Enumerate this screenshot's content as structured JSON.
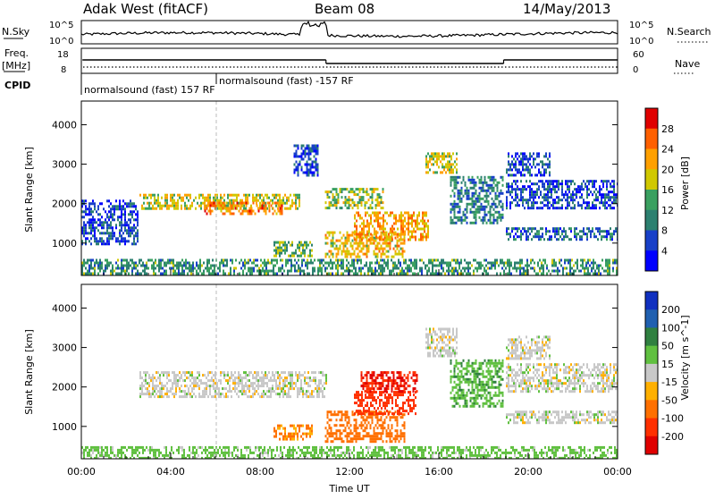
{
  "header": {
    "station": "Adak West (fitACF)",
    "beam": "Beam 08",
    "date": "14/May/2013"
  },
  "noise_panel": {
    "left_label": "N.Sky",
    "right_label": "N.Search",
    "left_ticks": [
      "10^5",
      "10^0"
    ],
    "right_ticks": [
      "10^5",
      "10^0"
    ]
  },
  "freq_panel": {
    "left_label_1": "Freq.",
    "left_label_2": "[MHz]",
    "right_label": "Nave",
    "left_ticks": [
      "18",
      "8"
    ],
    "right_ticks": [
      "60",
      "0"
    ],
    "freq_level": 13,
    "freq_drops": [
      {
        "start_hour": 0.05,
        "end_hour": 10.95,
        "level": 13.5
      },
      {
        "start_hour": 10.95,
        "end_hour": 18.9,
        "level": 11.5
      },
      {
        "start_hour": 18.9,
        "end_hour": 24.0,
        "level": 13.5
      }
    ]
  },
  "cpid_panel": {
    "label": "CPID",
    "segments": [
      {
        "text": "normalsound (fast) 157 RF",
        "start_hour": 0.05
      },
      {
        "text": "normalsound (fast) -157 RF",
        "start_hour": 6.1
      }
    ]
  },
  "chart_data": [
    {
      "type": "heatmap",
      "name": "power",
      "ylabel": "Slant Range [km]",
      "xlabel": "Time UT",
      "x_ticks": [
        "00:00",
        "04:00",
        "08:00",
        "12:00",
        "16:00",
        "20:00",
        "00:00"
      ],
      "xlim_hours": [
        0,
        24
      ],
      "y_ticks": [
        1000,
        2000,
        3000,
        4000
      ],
      "ylim": [
        180,
        4600
      ],
      "colorbar": {
        "label": "Power [dB]",
        "ticks": [
          28,
          24,
          20,
          16,
          12,
          8,
          4
        ],
        "colors": [
          "#e00000",
          "#ff6000",
          "#ffa000",
          "#d0c800",
          "#3aa060",
          "#2c8070",
          "#1840c8",
          "#0000ff"
        ]
      },
      "echo_regions": [
        {
          "x0": 2.6,
          "x1": 9.8,
          "y0": 1850,
          "y1": 2250,
          "value": 18
        },
        {
          "x0": 5.5,
          "x1": 9.0,
          "y0": 1750,
          "y1": 2050,
          "value": 24
        },
        {
          "x0": 8.6,
          "x1": 10.3,
          "y0": 650,
          "y1": 1050,
          "value": 14
        },
        {
          "x0": 10.9,
          "x1": 14.5,
          "y0": 650,
          "y1": 1300,
          "value": 20
        },
        {
          "x0": 12.2,
          "x1": 15.5,
          "y0": 1100,
          "y1": 1800,
          "value": 22
        },
        {
          "x0": 10.9,
          "x1": 13.5,
          "y0": 1900,
          "y1": 2400,
          "value": 16
        },
        {
          "x0": 15.4,
          "x1": 16.8,
          "y0": 2800,
          "y1": 3300,
          "value": 18
        },
        {
          "x0": 16.5,
          "x1": 18.9,
          "y0": 1500,
          "y1": 2700,
          "value": 10
        },
        {
          "x0": 19.0,
          "x1": 24.0,
          "y0": 1100,
          "y1": 1400,
          "value": 8
        },
        {
          "x0": 19.0,
          "x1": 24.0,
          "y0": 1900,
          "y1": 2600,
          "value": 6
        },
        {
          "x0": 19.0,
          "x1": 21.0,
          "y0": 2700,
          "y1": 3300,
          "value": 6
        },
        {
          "x0": 0.0,
          "x1": 24.0,
          "y0": 180,
          "y1": 600,
          "value": 12
        },
        {
          "x0": 9.5,
          "x1": 10.6,
          "y0": 2700,
          "y1": 3500,
          "value": 6
        },
        {
          "x0": 0.0,
          "x1": 2.5,
          "y0": 1000,
          "y1": 2100,
          "value": 6
        }
      ]
    },
    {
      "type": "heatmap",
      "name": "velocity",
      "ylabel": "Slant Range [km]",
      "xlabel": "Time UT",
      "x_ticks": [
        "00:00",
        "04:00",
        "08:00",
        "12:00",
        "16:00",
        "20:00",
        "00:00"
      ],
      "xlim_hours": [
        0,
        24
      ],
      "y_ticks": [
        1000,
        2000,
        3000,
        4000
      ],
      "ylim": [
        180,
        4600
      ],
      "colorbar": {
        "label": "Velocity [m s^-1]",
        "ticks": [
          "200",
          "100",
          "50",
          "15",
          "-15",
          "-50",
          "-100",
          "-200"
        ],
        "colors": [
          "#1030c0",
          "#2060b0",
          "#308040",
          "#60c040",
          "#c8c8c8",
          "#ffb000",
          "#ff7000",
          "#ff3000",
          "#e00000"
        ]
      },
      "echo_regions": [
        {
          "x0": 2.6,
          "x1": 11.0,
          "y0": 1750,
          "y1": 2400,
          "value": 0
        },
        {
          "x0": 8.6,
          "x1": 10.3,
          "y0": 650,
          "y1": 1050,
          "value": -60
        },
        {
          "x0": 10.9,
          "x1": 14.5,
          "y0": 650,
          "y1": 1400,
          "value": -80
        },
        {
          "x0": 12.2,
          "x1": 15.0,
          "y0": 1350,
          "y1": 1900,
          "value": -120
        },
        {
          "x0": 12.5,
          "x1": 15.0,
          "y0": 1900,
          "y1": 2400,
          "value": -200
        },
        {
          "x0": 15.4,
          "x1": 16.8,
          "y0": 2800,
          "y1": 3500,
          "value": 0
        },
        {
          "x0": 16.5,
          "x1": 18.9,
          "y0": 1500,
          "y1": 2700,
          "value": 40
        },
        {
          "x0": 19.0,
          "x1": 24.0,
          "y0": 1100,
          "y1": 1400,
          "value": 0
        },
        {
          "x0": 19.0,
          "x1": 24.0,
          "y0": 1900,
          "y1": 2600,
          "value": 0
        },
        {
          "x0": 19.0,
          "x1": 21.0,
          "y0": 2700,
          "y1": 3300,
          "value": 0
        },
        {
          "x0": 0.0,
          "x1": 24.0,
          "y0": 180,
          "y1": 500,
          "value": 30
        }
      ]
    }
  ]
}
